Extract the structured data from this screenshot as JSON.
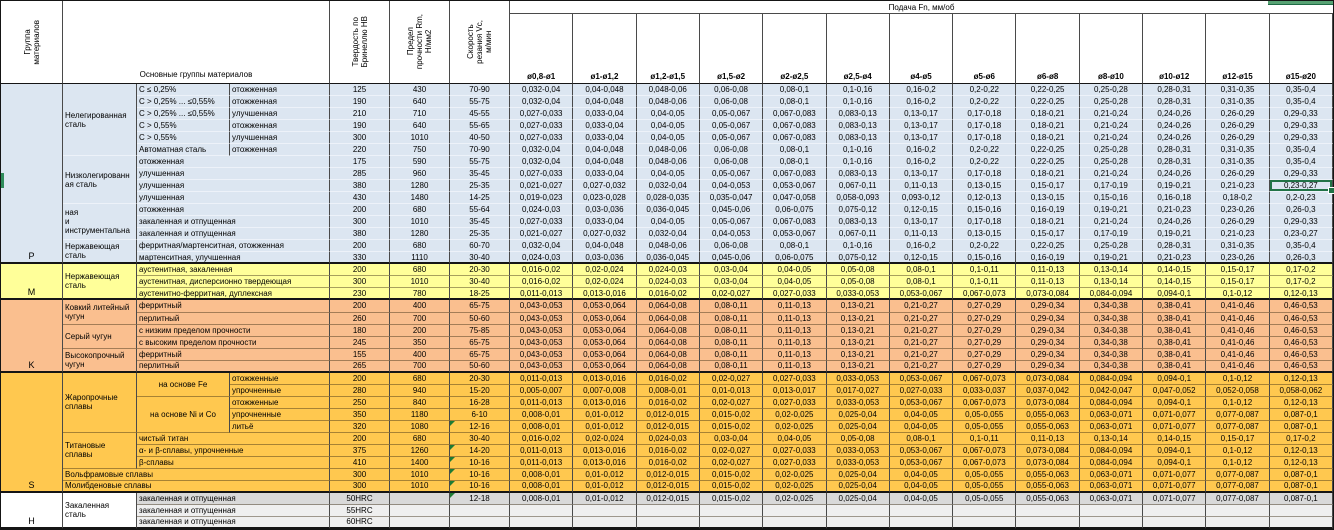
{
  "header": {
    "group_col": "Группа\nматериалов",
    "materials_col": "Основные группы материалов",
    "hardness_col": "Твердость по\nБринеллю НВ",
    "strength_col": "Предел\nпрочности Rm,\nН/мм2",
    "speed_col": "Скорость\nрезания Vc,\nм/мин",
    "feed_title": "Подача Fn, мм/об",
    "diameters": [
      "ø0,8-ø1",
      "ø1-ø1,2",
      "ø1,2-ø1,5",
      "ø1,5-ø2",
      "ø2-ø2,5",
      "ø2,5-ø4",
      "ø4-ø5",
      "ø5-ø6",
      "ø6-ø8",
      "ø8-ø10",
      "ø10-ø12",
      "ø12-ø15",
      "ø15-ø20"
    ]
  },
  "colors": {
    "group_p": "#DCE6F1",
    "group_m": "#FFFF99",
    "group_k": "#FABF8F",
    "group_s": "#FFC84F",
    "group_h_row": "#D9D9D9",
    "group_h_row_light": "#EFEFEF",
    "selection_green": "#217346",
    "comment_green": "#1E7B34",
    "edge_fragment_green": "#2F8C5B"
  },
  "groups": [
    {
      "letter": "P",
      "rows": [
        1,
        15
      ],
      "color": "#DCE6F1"
    },
    {
      "letter": "M",
      "rows": [
        16,
        18
      ],
      "color": "#FFFF99"
    },
    {
      "letter": "K",
      "rows": [
        19,
        24
      ],
      "color": "#FABF8F"
    },
    {
      "letter": "S",
      "rows": [
        25,
        34
      ],
      "color": "#FFC84F"
    },
    {
      "letter": "H",
      "rows": [
        35,
        37
      ],
      "color": "#FFFFFF"
    }
  ],
  "materials": [
    {
      "r": [
        1,
        6
      ],
      "c": [
        2,
        2
      ],
      "t": "Нелегированная сталь"
    },
    {
      "r": [
        1,
        1
      ],
      "c": [
        3,
        3
      ],
      "t": "C ≤ 0,25%"
    },
    {
      "r": [
        1,
        1
      ],
      "c": [
        4,
        4
      ],
      "t": "отожженная"
    },
    {
      "r": [
        2,
        2
      ],
      "c": [
        3,
        3
      ],
      "t": "C > 0,25% ... ≤0,55%"
    },
    {
      "r": [
        2,
        2
      ],
      "c": [
        4,
        4
      ],
      "t": "отожженная"
    },
    {
      "r": [
        3,
        3
      ],
      "c": [
        3,
        3
      ],
      "t": "C > 0,25% ... ≤0,55%"
    },
    {
      "r": [
        3,
        3
      ],
      "c": [
        4,
        4
      ],
      "t": "улучшенная"
    },
    {
      "r": [
        4,
        4
      ],
      "c": [
        3,
        3
      ],
      "t": "C > 0,55%"
    },
    {
      "r": [
        4,
        4
      ],
      "c": [
        4,
        4
      ],
      "t": "отожженная"
    },
    {
      "r": [
        5,
        5
      ],
      "c": [
        3,
        3
      ],
      "t": "C > 0,55%"
    },
    {
      "r": [
        5,
        5
      ],
      "c": [
        4,
        4
      ],
      "t": "улучшенная"
    },
    {
      "r": [
        6,
        6
      ],
      "c": [
        3,
        3
      ],
      "t": "Автоматная сталь"
    },
    {
      "r": [
        6,
        6
      ],
      "c": [
        4,
        4
      ],
      "t": "отожженная"
    },
    {
      "r": [
        7,
        10
      ],
      "c": [
        2,
        2
      ],
      "t": "Низколегированн\nая сталь"
    },
    {
      "r": [
        7,
        7
      ],
      "c": [
        3,
        4
      ],
      "t": "отожженная"
    },
    {
      "r": [
        8,
        8
      ],
      "c": [
        3,
        4
      ],
      "t": "улучшенная"
    },
    {
      "r": [
        9,
        9
      ],
      "c": [
        3,
        4
      ],
      "t": "улучшенная"
    },
    {
      "r": [
        10,
        10
      ],
      "c": [
        3,
        4
      ],
      "t": "улучшенная"
    },
    {
      "r": [
        11,
        13
      ],
      "c": [
        2,
        2
      ],
      "t": "ная\nи\nинструментальна"
    },
    {
      "r": [
        11,
        11
      ],
      "c": [
        3,
        4
      ],
      "t": "отожженная"
    },
    {
      "r": [
        12,
        12
      ],
      "c": [
        3,
        4
      ],
      "t": "закаленная и отпущенная"
    },
    {
      "r": [
        13,
        13
      ],
      "c": [
        3,
        4
      ],
      "t": "закаленная и отпущенная"
    },
    {
      "r": [
        14,
        15
      ],
      "c": [
        2,
        2
      ],
      "t": "Нержавеющая\nсталь"
    },
    {
      "r": [
        14,
        14
      ],
      "c": [
        3,
        4
      ],
      "t": "ферритная/мартенситная, отожженная"
    },
    {
      "r": [
        15,
        15
      ],
      "c": [
        3,
        4
      ],
      "t": "мартенситная, улучшенная"
    },
    {
      "r": [
        16,
        18
      ],
      "c": [
        2,
        2
      ],
      "t": "Нержавеющая\nсталь"
    },
    {
      "r": [
        16,
        16
      ],
      "c": [
        3,
        4
      ],
      "t": "аустенитная, закаленная"
    },
    {
      "r": [
        17,
        17
      ],
      "c": [
        3,
        4
      ],
      "t": "аустенитная, дисперсионно твердеющая"
    },
    {
      "r": [
        18,
        18
      ],
      "c": [
        3,
        4
      ],
      "t": "аустенитно-ферритная, дуплексная"
    },
    {
      "r": [
        19,
        20
      ],
      "c": [
        2,
        2
      ],
      "t": "Ковкий литейный\nчугун"
    },
    {
      "r": [
        19,
        19
      ],
      "c": [
        3,
        4
      ],
      "t": "ферритный"
    },
    {
      "r": [
        20,
        20
      ],
      "c": [
        3,
        4
      ],
      "t": "перлитный"
    },
    {
      "r": [
        21,
        22
      ],
      "c": [
        2,
        2
      ],
      "t": "Серый чугун"
    },
    {
      "r": [
        21,
        21
      ],
      "c": [
        3,
        4
      ],
      "t": "с низким пределом прочности"
    },
    {
      "r": [
        22,
        22
      ],
      "c": [
        3,
        4
      ],
      "t": "с высоким пределом прочности"
    },
    {
      "r": [
        23,
        24
      ],
      "c": [
        2,
        2
      ],
      "t": "Высокопрочный\nчугун"
    },
    {
      "r": [
        23,
        23
      ],
      "c": [
        3,
        4
      ],
      "t": "ферритный"
    },
    {
      "r": [
        24,
        24
      ],
      "c": [
        3,
        4
      ],
      "t": "перлитный"
    },
    {
      "r": [
        25,
        29
      ],
      "c": [
        2,
        2
      ],
      "t": "Жаропрочные\nсплавы"
    },
    {
      "r": [
        25,
        26
      ],
      "c": [
        3,
        3
      ],
      "t": "на основе Fe",
      "center": true
    },
    {
      "r": [
        25,
        25
      ],
      "c": [
        4,
        4
      ],
      "t": "отожженные"
    },
    {
      "r": [
        26,
        26
      ],
      "c": [
        4,
        4
      ],
      "t": "упрочненные"
    },
    {
      "r": [
        27,
        29
      ],
      "c": [
        3,
        3
      ],
      "t": "на основе Ni и Co",
      "center": true
    },
    {
      "r": [
        27,
        27
      ],
      "c": [
        4,
        4
      ],
      "t": "отожженные"
    },
    {
      "r": [
        28,
        28
      ],
      "c": [
        4,
        4
      ],
      "t": "упрочненные"
    },
    {
      "r": [
        29,
        29
      ],
      "c": [
        4,
        4
      ],
      "t": "литьё"
    },
    {
      "r": [
        30,
        32
      ],
      "c": [
        2,
        2
      ],
      "t": "Титановые\nсплавы"
    },
    {
      "r": [
        30,
        30
      ],
      "c": [
        3,
        4
      ],
      "t": "чистый титан"
    },
    {
      "r": [
        31,
        31
      ],
      "c": [
        3,
        4
      ],
      "t": "α- и β-сплавы, упрочненные"
    },
    {
      "r": [
        32,
        32
      ],
      "c": [
        3,
        4
      ],
      "t": "β-сплавы"
    },
    {
      "r": [
        33,
        33
      ],
      "c": [
        2,
        4
      ],
      "t": "Вольфрамовые сплавы"
    },
    {
      "r": [
        34,
        34
      ],
      "c": [
        2,
        4
      ],
      "t": "Молибденовые сплавы"
    },
    {
      "r": [
        35,
        37
      ],
      "c": [
        2,
        2
      ],
      "t": "Закаленная\nсталь",
      "bg": "#FFFFFF"
    },
    {
      "r": [
        35,
        35
      ],
      "c": [
        3,
        4
      ],
      "t": "закаленная и отпущенная"
    },
    {
      "r": [
        36,
        36
      ],
      "c": [
        3,
        4
      ],
      "t": "закаленная и отпущенная"
    },
    {
      "r": [
        37,
        37
      ],
      "c": [
        3,
        4
      ],
      "t": "закаленная и отпущенная"
    }
  ],
  "feed_patterns": {
    "A": [
      "0,032-0,04",
      "0,04-0,048",
      "0,048-0,06",
      "0,06-0,08",
      "0,08-0,1",
      "0,1-0,16",
      "0,16-0,2",
      "0,2-0,22",
      "0,22-0,25",
      "0,25-0,28",
      "0,28-0,31",
      "0,31-0,35",
      "0,35-0,4"
    ],
    "B": [
      "0,027-0,033",
      "0,033-0,04",
      "0,04-0,05",
      "0,05-0,067",
      "0,067-0,083",
      "0,083-0,13",
      "0,13-0,17",
      "0,17-0,18",
      "0,18-0,21",
      "0,21-0,24",
      "0,24-0,26",
      "0,26-0,29",
      "0,29-0,33"
    ],
    "C": [
      "0,021-0,027",
      "0,027-0,032",
      "0,032-0,04",
      "0,04-0,053",
      "0,053-0,067",
      "0,067-0,11",
      "0,11-0,13",
      "0,13-0,15",
      "0,15-0,17",
      "0,17-0,19",
      "0,19-0,21",
      "0,21-0,23",
      "0,23-0,27"
    ],
    "D": [
      "0,019-0,023",
      "0,023-0,028",
      "0,028-0,035",
      "0,035-0,047",
      "0,047-0,058",
      "0,058-0,093",
      "0,093-0,12",
      "0,12-0,13",
      "0,13-0,15",
      "0,15-0,16",
      "0,16-0,18",
      "0,18-0,2",
      "0,2-0,23"
    ],
    "E": [
      "0,024-0,03",
      "0,03-0,036",
      "0,036-0,045",
      "0,045-0,06",
      "0,06-0,075",
      "0,075-0,12",
      "0,12-0,15",
      "0,15-0,16",
      "0,16-0,19",
      "0,19-0,21",
      "0,21-0,23",
      "0,23-0,26",
      "0,26-0,3"
    ],
    "F": [
      "0,016-0,02",
      "0,02-0,024",
      "0,024-0,03",
      "0,03-0,04",
      "0,04-0,05",
      "0,05-0,08",
      "0,08-0,1",
      "0,1-0,11",
      "0,11-0,13",
      "0,13-0,14",
      "0,14-0,15",
      "0,15-0,17",
      "0,17-0,2"
    ],
    "G": [
      "0,011-0,013",
      "0,013-0,016",
      "0,016-0,02",
      "0,02-0,027",
      "0,027-0,033",
      "0,033-0,053",
      "0,053-0,067",
      "0,067-0,073",
      "0,073-0,084",
      "0,084-0,094",
      "0,094-0,1",
      "0,1-0,12",
      "0,12-0,13"
    ],
    "H": [
      "0,043-0,053",
      "0,053-0,064",
      "0,064-0,08",
      "0,08-0,11",
      "0,11-0,13",
      "0,13-0,21",
      "0,21-0,27",
      "0,27-0,29",
      "0,29-0,34",
      "0,34-0,38",
      "0,38-0,41",
      "0,41-0,46",
      "0,46-0,53"
    ],
    "I": [
      "0,008-0,01",
      "0,01-0,012",
      "0,012-0,015",
      "0,015-0,02",
      "0,02-0,025",
      "0,025-0,04",
      "0,04-0,05",
      "0,05-0,055",
      "0,055-0,063",
      "0,063-0,071",
      "0,071-0,077",
      "0,077-0,087",
      "0,087-0,1"
    ],
    "J": [
      "0,005-0,007",
      "0,007-0,008",
      "0,008-0,01",
      "0,01-0,013",
      "0,013-0,017",
      "0,017-0,027",
      "0,027-0,033",
      "0,033-0,037",
      "0,037-0,042",
      "0,042-0,047",
      "0,047-0,052",
      "0,052-0,058",
      "0,058-0,062"
    ]
  },
  "rows": [
    {
      "bg": "#DCE6F1",
      "hb": "125",
      "rm": "430",
      "vc": "70-90",
      "feeds": "A"
    },
    {
      "bg": "#DCE6F1",
      "hb": "190",
      "rm": "640",
      "vc": "55-75",
      "feeds": "A"
    },
    {
      "bg": "#DCE6F1",
      "hb": "210",
      "rm": "710",
      "vc": "45-55",
      "feeds": "B"
    },
    {
      "bg": "#DCE6F1",
      "hb": "190",
      "rm": "640",
      "vc": "55-65",
      "feeds": "B"
    },
    {
      "bg": "#DCE6F1",
      "hb": "300",
      "rm": "1010",
      "vc": "40-50",
      "feeds": "B"
    },
    {
      "bg": "#DCE6F1",
      "hb": "220",
      "rm": "750",
      "vc": "70-90",
      "feeds": "A"
    },
    {
      "bg": "#DCE6F1",
      "hb": "175",
      "rm": "590",
      "vc": "55-75",
      "feeds": "A"
    },
    {
      "bg": "#DCE6F1",
      "hb": "285",
      "rm": "960",
      "vc": "35-45",
      "feeds": "B"
    },
    {
      "bg": "#DCE6F1",
      "hb": "380",
      "rm": "1280",
      "vc": "25-35",
      "feeds": "C"
    },
    {
      "bg": "#DCE6F1",
      "hb": "430",
      "rm": "1480",
      "vc": "14-25",
      "feeds": "D"
    },
    {
      "bg": "#DCE6F1",
      "hb": "200",
      "rm": "680",
      "vc": "55-64",
      "feeds": "E"
    },
    {
      "bg": "#DCE6F1",
      "hb": "300",
      "rm": "1010",
      "vc": "35-45",
      "feeds": "B"
    },
    {
      "bg": "#DCE6F1",
      "hb": "380",
      "rm": "1280",
      "vc": "25-35",
      "feeds": "C"
    },
    {
      "bg": "#DCE6F1",
      "hb": "200",
      "rm": "680",
      "vc": "60-70",
      "feeds": "A"
    },
    {
      "bg": "#DCE6F1",
      "hb": "330",
      "rm": "1110",
      "vc": "30-40",
      "feeds": "E"
    },
    {
      "bg": "#FFFF99",
      "hb": "200",
      "rm": "680",
      "vc": "20-30",
      "feeds": "F"
    },
    {
      "bg": "#FFFF99",
      "hb": "300",
      "rm": "1010",
      "vc": "30-40",
      "feeds": "F"
    },
    {
      "bg": "#FFFF99",
      "hb": "230",
      "rm": "780",
      "vc": "18-25",
      "feeds": "G"
    },
    {
      "bg": "#FABF8F",
      "hb": "200",
      "rm": "400",
      "vc": "65-75",
      "feeds": "H"
    },
    {
      "bg": "#FABF8F",
      "hb": "260",
      "rm": "700",
      "vc": "50-60",
      "feeds": "H"
    },
    {
      "bg": "#FABF8F",
      "hb": "180",
      "rm": "200",
      "vc": "75-85",
      "feeds": "H"
    },
    {
      "bg": "#FABF8F",
      "hb": "245",
      "rm": "350",
      "vc": "65-75",
      "feeds": "H"
    },
    {
      "bg": "#FABF8F",
      "hb": "155",
      "rm": "400",
      "vc": "65-75",
      "feeds": "H"
    },
    {
      "bg": "#FABF8F",
      "hb": "265",
      "rm": "700",
      "vc": "50-60",
      "feeds": "H"
    },
    {
      "bg": "#FFC84F",
      "hb": "200",
      "rm": "680",
      "vc": "20-30",
      "feeds": "G"
    },
    {
      "bg": "#FFC84F",
      "hb": "280",
      "rm": "940",
      "vc": "15-20",
      "feeds": "J"
    },
    {
      "bg": "#FFC84F",
      "hb": "250",
      "rm": "840",
      "vc": "16-28",
      "feeds": "G"
    },
    {
      "bg": "#FFC84F",
      "hb": "350",
      "rm": "1180",
      "vc": "6-10",
      "feeds": "I"
    },
    {
      "bg": "#FFC84F",
      "hb": "320",
      "rm": "1080",
      "vc": "12-16",
      "feeds": "I",
      "note_vc": true
    },
    {
      "bg": "#FFC84F",
      "hb": "200",
      "rm": "680",
      "vc": "30-40",
      "feeds": "F"
    },
    {
      "bg": "#FFC84F",
      "hb": "375",
      "rm": "1260",
      "vc": "14-20",
      "feeds": "G",
      "note_vc": true
    },
    {
      "bg": "#FFC84F",
      "hb": "410",
      "rm": "1400",
      "vc": "10-16",
      "feeds": "G",
      "note_vc": true
    },
    {
      "bg": "#FFC84F",
      "hb": "300",
      "rm": "1010",
      "vc": "10-16",
      "feeds": "I",
      "note_vc": true
    },
    {
      "bg": "#FFC84F",
      "hb": "300",
      "rm": "1010",
      "vc": "10-16",
      "feeds": "I",
      "note_vc": true
    },
    {
      "bg": "#D9D9D9",
      "hb": "50HRC",
      "rm": "",
      "vc": "12-18",
      "feeds": "I",
      "note_vc": true
    },
    {
      "bg": "#EFEFEF",
      "hb": "55HRC",
      "rm": "",
      "vc": "",
      "feeds": ""
    },
    {
      "bg": "#EFEFEF",
      "hb": "60HRC",
      "rm": "",
      "vc": "",
      "feeds": ""
    }
  ],
  "selection": {
    "row": 9,
    "feed_col": 13,
    "value": "0,23-0,27",
    "color": "#217346"
  }
}
